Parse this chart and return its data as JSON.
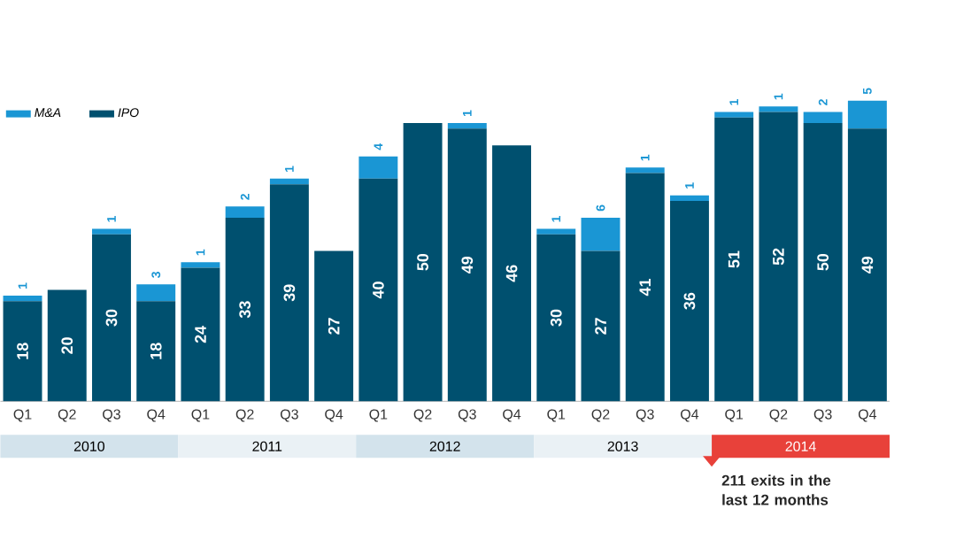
{
  "chart_data": {
    "type": "bar",
    "stacked": true,
    "data_labels": true,
    "legend": "top left",
    "tick_labels": "x",
    "categories": [
      "Q1",
      "Q2",
      "Q3",
      "Q4",
      "Q1",
      "Q2",
      "Q3",
      "Q4",
      "Q1",
      "Q2",
      "Q3",
      "Q4",
      "Q1",
      "Q2",
      "Q3",
      "Q4",
      "Q1",
      "Q2",
      "Q3",
      "Q4"
    ],
    "series": [
      {
        "name": "IPO",
        "color": "#00506f",
        "values": [
          18,
          20,
          30,
          18,
          24,
          33,
          39,
          27,
          40,
          50,
          49,
          46,
          30,
          27,
          41,
          36,
          51,
          52,
          50,
          49
        ]
      },
      {
        "name": "M&A",
        "color": "#1a96d4",
        "values": [
          1,
          null,
          1,
          3,
          1,
          2,
          1,
          null,
          4,
          null,
          1,
          null,
          1,
          6,
          1,
          1,
          1,
          1,
          2,
          5
        ]
      }
    ],
    "annotations": [
      "2010",
      "2011",
      "2012",
      "2013",
      "2014",
      "211 exits in the last 12 months"
    ]
  }
}
